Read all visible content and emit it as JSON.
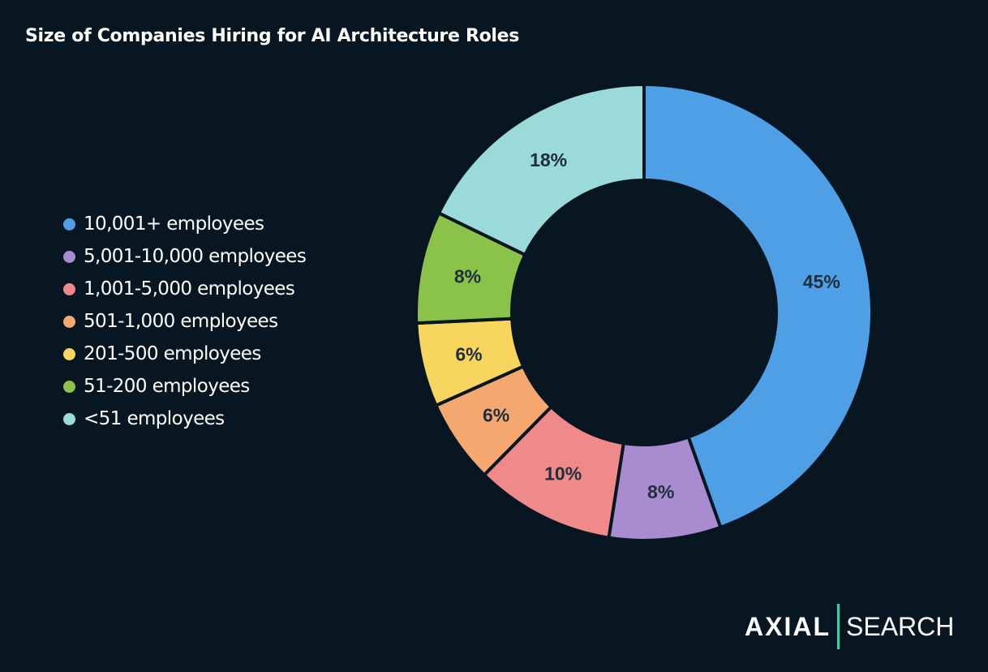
{
  "chart_data": {
    "type": "pie",
    "donut": true,
    "title": "Size of Companies Hiring for AI Architecture Roles",
    "legend_position": "left",
    "categories": [
      "10,001+ employees",
      "5,001-10,000 employees",
      "1,001-5,000 employees",
      "501-1,000 employees",
      "201-500 employees",
      "51-200 employees",
      "<51 employees"
    ],
    "values": [
      45,
      8,
      10,
      6,
      6,
      8,
      18
    ],
    "labels": [
      "45%",
      "8%",
      "10%",
      "6%",
      "6%",
      "8%",
      "18%"
    ],
    "colors": [
      "#4f9fe6",
      "#a98bd0",
      "#f08a8a",
      "#f4a870",
      "#f8d55e",
      "#8bc34a",
      "#9adada"
    ]
  },
  "logo": {
    "left": "AXIAL",
    "right": "SEARCH",
    "accent": "#2fd7a0"
  },
  "background": "#071620"
}
